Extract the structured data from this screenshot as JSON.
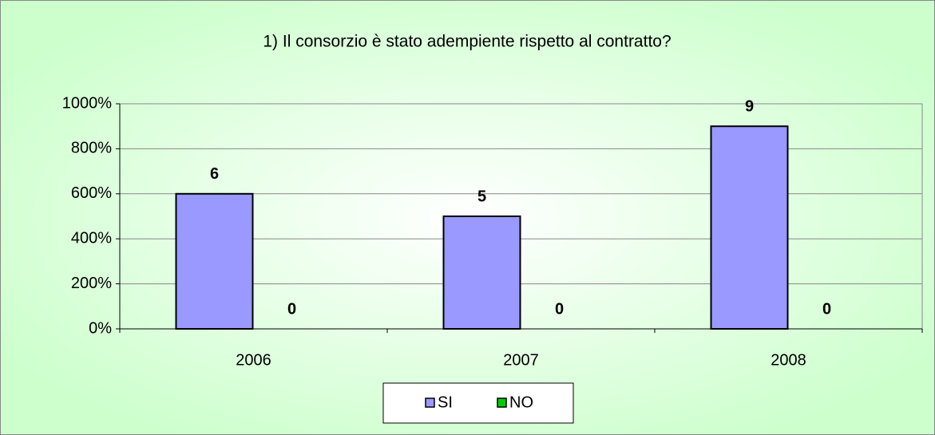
{
  "chart_data": {
    "type": "bar",
    "title": "1) Il consorzio è stato adempiente rispetto al contratto?",
    "categories": [
      "2006",
      "2007",
      "2008"
    ],
    "series": [
      {
        "name": "SI",
        "color": "#9999ff",
        "values": [
          600,
          500,
          900
        ],
        "value_labels": [
          "6",
          "5",
          "9"
        ]
      },
      {
        "name": "NO",
        "color": "#00cc00",
        "values": [
          0,
          0,
          0
        ]
      }
    ],
    "ylim": [
      0,
      1000
    ],
    "yticks": [
      {
        "value": 0,
        "label": "0%"
      },
      {
        "value": 200,
        "label": "200%"
      },
      {
        "value": 400,
        "label": "400%"
      },
      {
        "value": 600,
        "label": "600%"
      },
      {
        "value": 800,
        "label": "800%"
      },
      {
        "value": 1000,
        "label": "1000%"
      }
    ],
    "grid": true,
    "legend": "bottom"
  }
}
